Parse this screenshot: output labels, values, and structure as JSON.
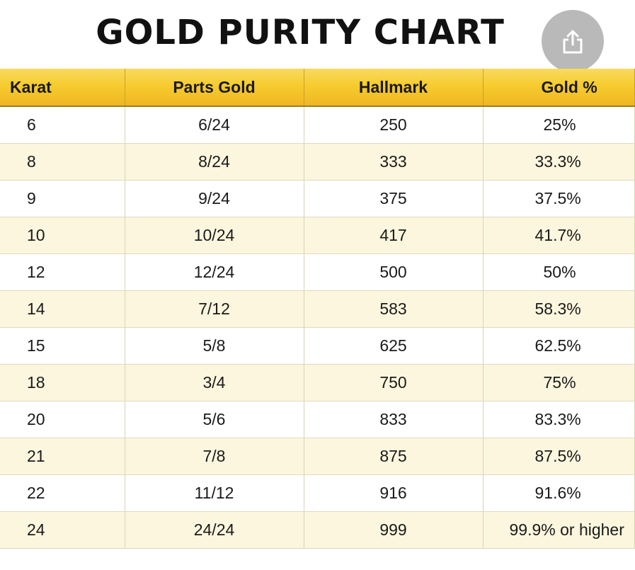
{
  "title": "GOLD PURITY CHART",
  "share_icon": "share-icon",
  "table": {
    "headers": [
      "Karat",
      "Parts Gold",
      "Hallmark",
      "Gold %"
    ],
    "rows": [
      [
        "6",
        "6/24",
        "250",
        "25%"
      ],
      [
        "8",
        "8/24",
        "333",
        "33.3%"
      ],
      [
        "9",
        "9/24",
        "375",
        "37.5%"
      ],
      [
        "10",
        "10/24",
        "417",
        "41.7%"
      ],
      [
        "12",
        "12/24",
        "500",
        "50%"
      ],
      [
        "14",
        "7/12",
        "583",
        "58.3%"
      ],
      [
        "15",
        "5/8",
        "625",
        "62.5%"
      ],
      [
        "18",
        "3/4",
        "750",
        "75%"
      ],
      [
        "20",
        "5/6",
        "833",
        "83.3%"
      ],
      [
        "21",
        "7/8",
        "875",
        "87.5%"
      ],
      [
        "22",
        "11/12",
        "916",
        "91.6%"
      ],
      [
        "24",
        "24/24",
        "999",
        "99.9% or higher"
      ]
    ]
  },
  "colors": {
    "header_gold": "#f6cc2f",
    "row_alt": "#fcf6de",
    "title": "#111111"
  }
}
